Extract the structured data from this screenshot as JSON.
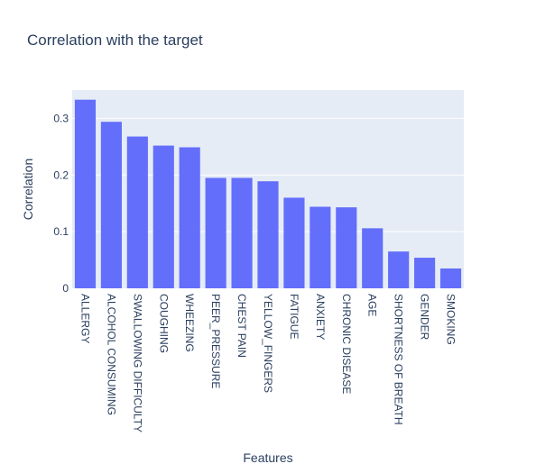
{
  "chart_data": {
    "type": "bar",
    "title": "Correlation with the target",
    "xlabel": "Features",
    "ylabel": "Correlation",
    "categories": [
      "ALLERGY",
      "ALCOHOL CONSUMING",
      "SWALLOWING DIFFICULTY",
      "COUGHING",
      "WHEEZING",
      "PEER_PRESSURE",
      "CHEST PAIN",
      "YELLOW_FINGERS",
      "FATIGUE",
      "ANXIETY",
      "CHRONIC DISEASE",
      "AGE",
      "SHORTNESS OF BREATH",
      "GENDER",
      "SMOKING"
    ],
    "values": [
      0.333,
      0.294,
      0.268,
      0.252,
      0.249,
      0.195,
      0.195,
      0.189,
      0.16,
      0.144,
      0.143,
      0.106,
      0.065,
      0.054,
      0.035
    ],
    "ylim": [
      0,
      0.35
    ],
    "yticks": [
      0,
      0.1,
      0.2,
      0.3
    ],
    "ytick_labels": [
      "0",
      "0.1",
      "0.2",
      "0.3"
    ],
    "grid": true,
    "colors": {
      "bar": "#636efa",
      "plot_bg": "#e5ecf6",
      "grid": "#ffffff",
      "text": "#2a3f5f"
    }
  }
}
